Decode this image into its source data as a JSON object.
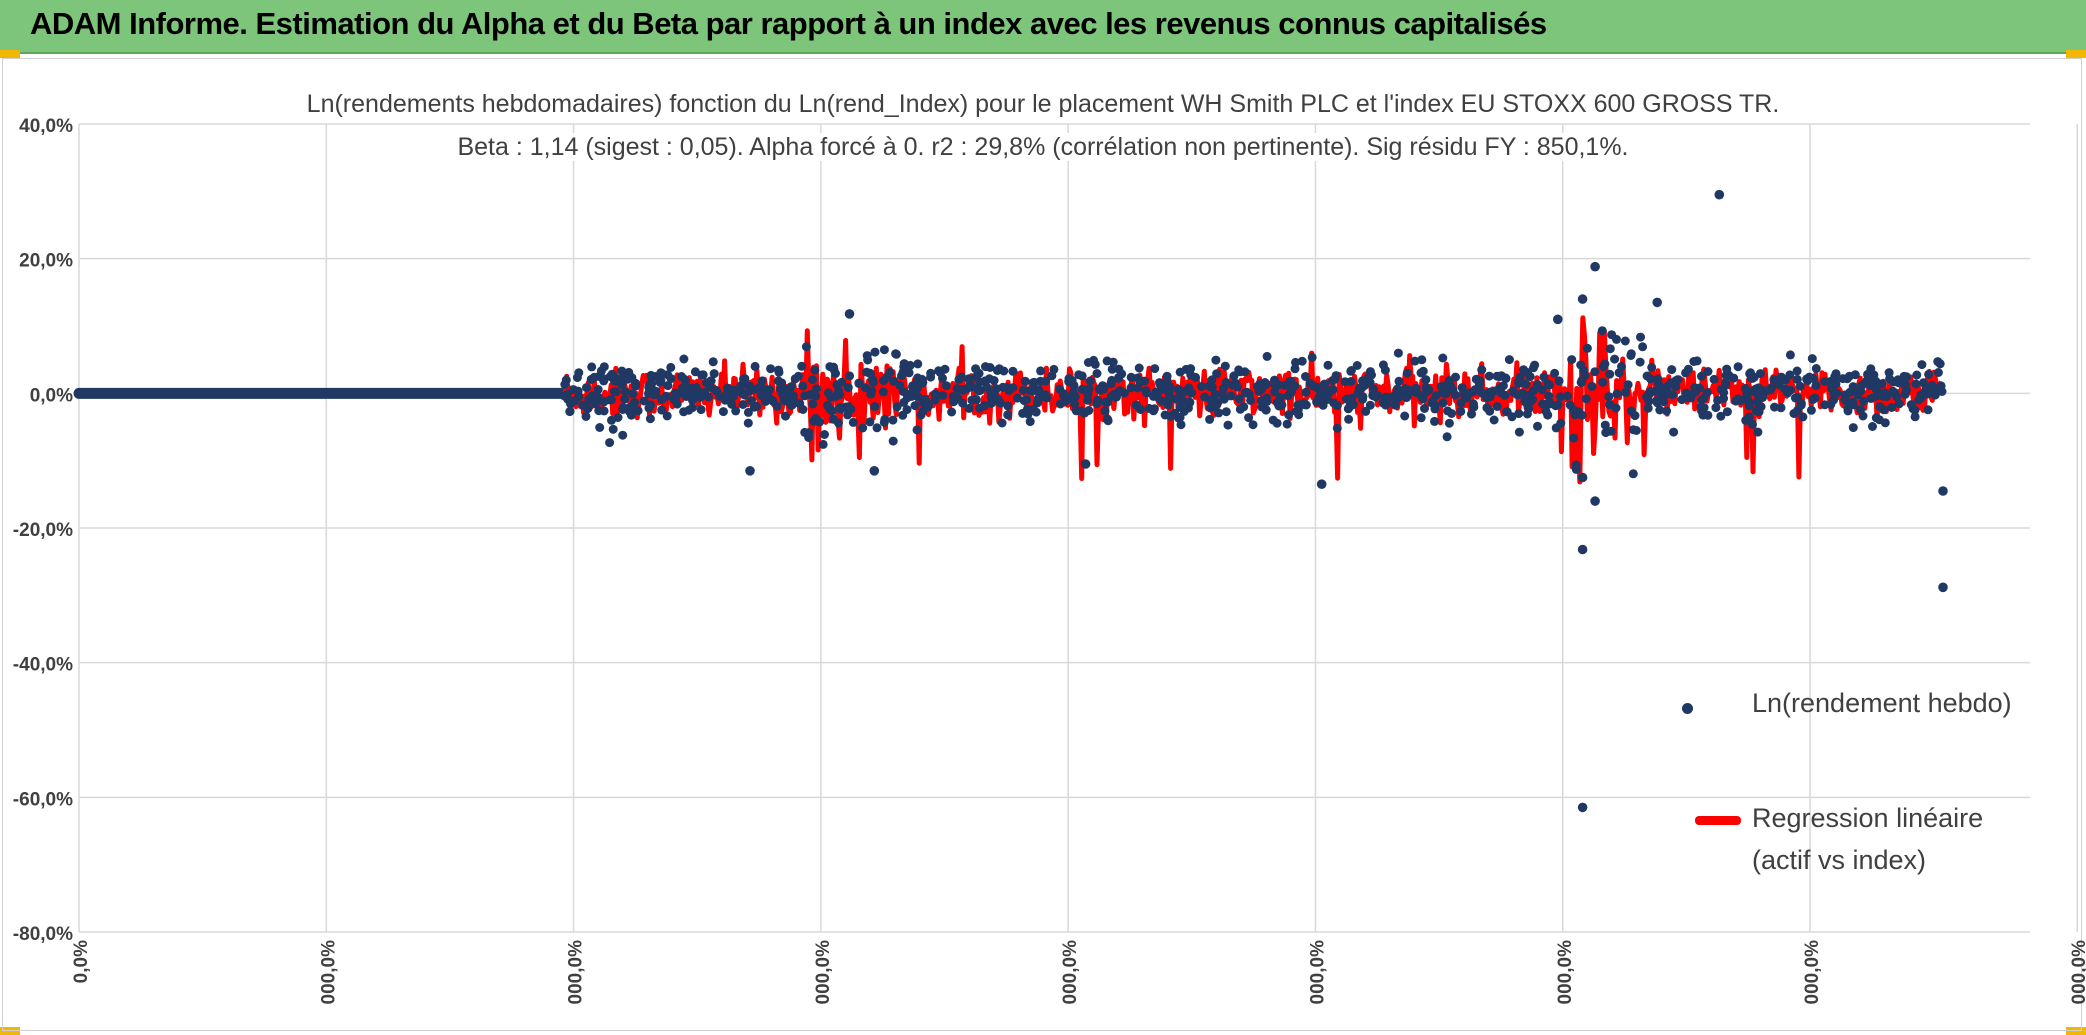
{
  "header": {
    "title": "ADAM Informe. Estimation du Alpha et du Beta par rapport à un index avec les revenus connus capitalisés"
  },
  "colors": {
    "banner": "#7dc57b",
    "points": "#203864",
    "regression": "#ff0000",
    "grid": "#d9d9d9"
  },
  "chart_data": {
    "type": "scatter",
    "title": "Ln(rendements hebdomadaires) fonction du Ln(rend_Index) pour le placement WH Smith PLC et l'index EU STOXX 600 GROSS TR.",
    "subtitle": "Beta : 1,14 (sigest : 0,05). Alpha forcé à 0. r2 : 29,8% (corrélation non pertinente). Sig résidu FY : 850,1%.",
    "y_ticks": [
      "40,0%",
      "20,0%",
      "0,0%",
      "-20,0%",
      "-40,0%",
      "-60,0%",
      "-80,0%"
    ],
    "x_ticks": [
      "0,0%",
      "000,0%",
      "000,0%",
      "000,0%",
      "000,0%",
      "000,0%",
      "000,0%",
      "000,0%",
      "000,0%"
    ],
    "ylim": [
      -80,
      40
    ],
    "xlim": [
      0,
      8
    ],
    "series": [
      {
        "name": "Ln(rendement hebdo)",
        "kind": "points"
      },
      {
        "name": "Regression linéaire (actif vs index)",
        "kind": "line"
      }
    ],
    "legend": {
      "points_label": "Ln(rendement hebdo)",
      "line_label_1": "Regression linéaire",
      "line_label_2": "(actif vs index)",
      "position": "right"
    },
    "flat_segment": {
      "x_start": 0,
      "x_end": 1.95,
      "y": 0
    },
    "active_range": {
      "x_start": 1.95,
      "x_end": 7.5
    },
    "notable_points": [
      {
        "x": 6.6,
        "y": 29.5
      },
      {
        "x": 6.05,
        "y": 14.0
      },
      {
        "x": 6.1,
        "y": 18.8
      },
      {
        "x": 6.35,
        "y": 13.5
      },
      {
        "x": 5.95,
        "y": 11.0
      },
      {
        "x": 3.1,
        "y": 11.8
      },
      {
        "x": 6.05,
        "y": -12.5
      },
      {
        "x": 6.1,
        "y": -16.0
      },
      {
        "x": 6.05,
        "y": -23.2
      },
      {
        "x": 7.5,
        "y": -28.8
      },
      {
        "x": 7.5,
        "y": -14.5
      },
      {
        "x": 6.05,
        "y": -61.5
      },
      {
        "x": 3.2,
        "y": -11.5
      },
      {
        "x": 4.05,
        "y": -10.5
      },
      {
        "x": 5.0,
        "y": -13.5
      },
      {
        "x": 2.7,
        "y": -11.5
      }
    ]
  }
}
